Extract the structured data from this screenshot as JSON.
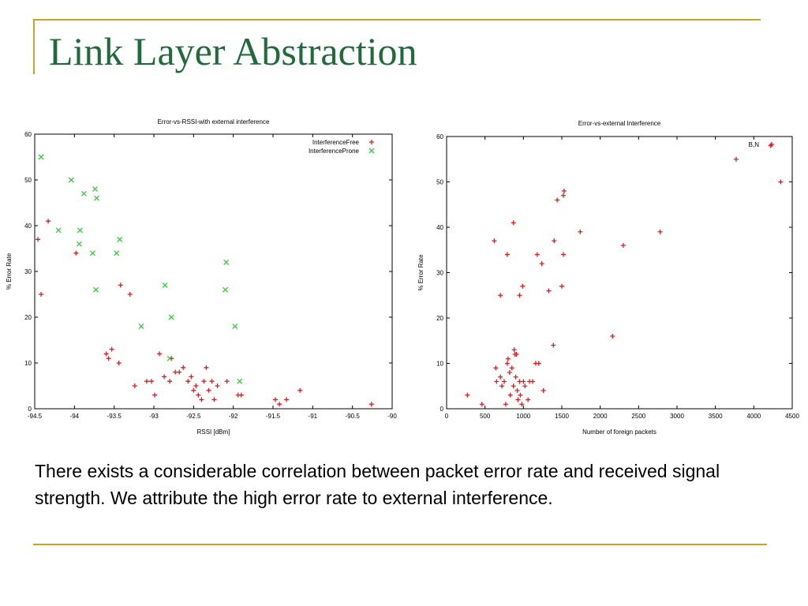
{
  "slide": {
    "title": "Link Layer Abstraction",
    "body": "There exists a considerable correlation between packet error rate and received signal strength.  We attribute the high error rate to external interference."
  },
  "colors": {
    "title": "#1f6b3a",
    "frame": "#c9a227",
    "series_free": "#e31a1c",
    "series_prone": "#33cc33"
  },
  "chart_data": [
    {
      "type": "scatter",
      "title": "Error-vs-RSSI-with external interference",
      "xlabel": "RSSI [dBm]",
      "ylabel": "% Error Rate",
      "xlim": [
        -94.5,
        -90
      ],
      "ylim": [
        0,
        60
      ],
      "xticks": [
        -94.5,
        -94,
        -93.5,
        -93,
        -92.5,
        -92,
        -91.5,
        -91,
        -90.5,
        -90
      ],
      "yticks": [
        0,
        10,
        20,
        30,
        40,
        50,
        60
      ],
      "legend_position": "top-right",
      "series": [
        {
          "name": "InterferenceFree",
          "marker": "+",
          "color": "#e31a1c",
          "points": [
            [
              -94.46,
              37
            ],
            [
              -94.42,
              25
            ],
            [
              -94.33,
              41
            ],
            [
              -93.98,
              34
            ],
            [
              -93.42,
              27
            ],
            [
              -93.3,
              25
            ],
            [
              -93.6,
              12
            ],
            [
              -93.57,
              11
            ],
            [
              -93.53,
              13
            ],
            [
              -93.44,
              10
            ],
            [
              -93.24,
              5
            ],
            [
              -93.09,
              6
            ],
            [
              -93.03,
              6
            ],
            [
              -92.99,
              3
            ],
            [
              -92.93,
              12
            ],
            [
              -92.87,
              7
            ],
            [
              -92.8,
              6
            ],
            [
              -92.78,
              11
            ],
            [
              -92.73,
              8
            ],
            [
              -92.68,
              8
            ],
            [
              -92.63,
              9
            ],
            [
              -92.57,
              6
            ],
            [
              -92.53,
              7
            ],
            [
              -92.5,
              4
            ],
            [
              -92.47,
              5
            ],
            [
              -92.44,
              3
            ],
            [
              -92.4,
              2
            ],
            [
              -92.37,
              6
            ],
            [
              -92.34,
              9
            ],
            [
              -92.31,
              4
            ],
            [
              -92.27,
              6
            ],
            [
              -92.24,
              2
            ],
            [
              -92.2,
              5
            ],
            [
              -92.08,
              6
            ],
            [
              -91.94,
              3
            ],
            [
              -91.9,
              3
            ],
            [
              -91.47,
              2
            ],
            [
              -91.42,
              1
            ],
            [
              -91.33,
              2
            ],
            [
              -91.16,
              4
            ],
            [
              -90.26,
              1
            ]
          ]
        },
        {
          "name": "InterferenceProne",
          "marker": "x",
          "color": "#33cc33",
          "points": [
            [
              -94.42,
              55
            ],
            [
              -94.04,
              50
            ],
            [
              -93.88,
              47
            ],
            [
              -93.74,
              48
            ],
            [
              -93.72,
              46
            ],
            [
              -94.2,
              39
            ],
            [
              -93.93,
              39
            ],
            [
              -93.94,
              36
            ],
            [
              -93.77,
              34
            ],
            [
              -93.43,
              37
            ],
            [
              -93.47,
              34
            ],
            [
              -93.73,
              26
            ],
            [
              -92.86,
              27
            ],
            [
              -93.16,
              18
            ],
            [
              -92.78,
              20
            ],
            [
              -92.8,
              11
            ],
            [
              -92.1,
              26
            ],
            [
              -92.09,
              32
            ],
            [
              -91.98,
              18
            ],
            [
              -91.92,
              6
            ]
          ]
        }
      ]
    },
    {
      "type": "scatter",
      "title": "Error-vs-external Interference",
      "xlabel": "Number of foreign packets",
      "ylabel": "% Error Rate",
      "xlim": [
        0,
        4500
      ],
      "ylim": [
        0,
        60
      ],
      "xticks": [
        0,
        500,
        1000,
        1500,
        2000,
        2500,
        3000,
        3500,
        4000,
        4500
      ],
      "yticks": [
        0,
        10,
        20,
        30,
        40,
        50,
        60
      ],
      "legend_position": "top-right",
      "series": [
        {
          "name": "B,N",
          "marker": "+",
          "color": "#e31a1c",
          "points": [
            [
              4220,
              58
            ],
            [
              3770,
              55
            ],
            [
              4350,
              50
            ],
            [
              1530,
              48
            ],
            [
              1520,
              47
            ],
            [
              1440,
              46
            ],
            [
              870,
              41
            ],
            [
              1740,
              39
            ],
            [
              2780,
              39
            ],
            [
              620,
              37
            ],
            [
              1400,
              37
            ],
            [
              2300,
              36
            ],
            [
              790,
              34
            ],
            [
              1180,
              34
            ],
            [
              1520,
              34
            ],
            [
              1240,
              32
            ],
            [
              990,
              27
            ],
            [
              1500,
              27
            ],
            [
              700,
              25
            ],
            [
              950,
              25
            ],
            [
              1330,
              26
            ],
            [
              2160,
              16
            ],
            [
              1390,
              14
            ],
            [
              270,
              3
            ],
            [
              460,
              1
            ],
            [
              640,
              9
            ],
            [
              650,
              6
            ],
            [
              700,
              7
            ],
            [
              720,
              5
            ],
            [
              750,
              6
            ],
            [
              770,
              1
            ],
            [
              790,
              10
            ],
            [
              800,
              11
            ],
            [
              820,
              8
            ],
            [
              830,
              3
            ],
            [
              850,
              9
            ],
            [
              870,
              5
            ],
            [
              880,
              13
            ],
            [
              890,
              12
            ],
            [
              900,
              7
            ],
            [
              910,
              12
            ],
            [
              920,
              4
            ],
            [
              930,
              2
            ],
            [
              950,
              6
            ],
            [
              960,
              3
            ],
            [
              980,
              1
            ],
            [
              1000,
              6
            ],
            [
              1020,
              5
            ],
            [
              1060,
              2
            ],
            [
              1080,
              6
            ],
            [
              1120,
              6
            ],
            [
              1160,
              10
            ],
            [
              1200,
              10
            ],
            [
              1260,
              4
            ]
          ]
        }
      ]
    }
  ]
}
